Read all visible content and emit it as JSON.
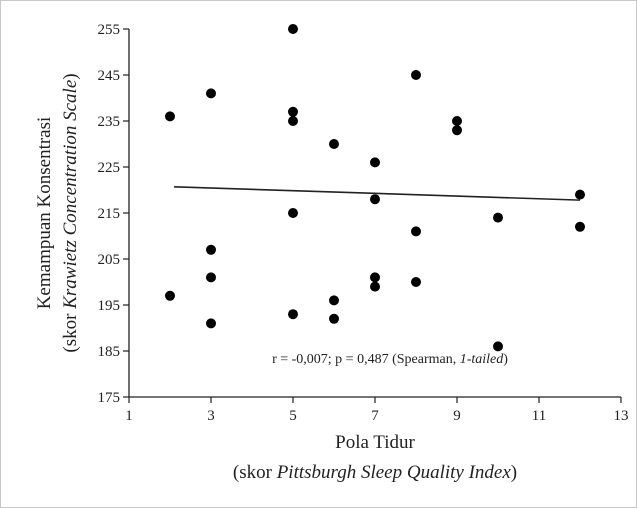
{
  "chart_data": {
    "type": "scatter",
    "xlabel": {
      "line1": "Pola Tidur",
      "line2_prefix": "(skor ",
      "line2_italic": "Pittsburgh Sleep Quality Index",
      "line2_suffix": ")"
    },
    "ylabel": {
      "line1": "Kemampuan Konsentrasi",
      "line2_prefix": "(skor ",
      "line2_italic": "Krawietz Concentration Scale",
      "line2_suffix": ")"
    },
    "xlim": [
      1,
      13
    ],
    "ylim": [
      175,
      255
    ],
    "xticks": [
      1,
      3,
      5,
      7,
      9,
      11,
      13
    ],
    "yticks": [
      175,
      185,
      195,
      205,
      215,
      225,
      235,
      245,
      255
    ],
    "grid": false,
    "points": [
      {
        "x": 2,
        "y": 236
      },
      {
        "x": 2,
        "y": 197
      },
      {
        "x": 3,
        "y": 241
      },
      {
        "x": 3,
        "y": 207
      },
      {
        "x": 3,
        "y": 201
      },
      {
        "x": 3,
        "y": 191
      },
      {
        "x": 5,
        "y": 255
      },
      {
        "x": 5,
        "y": 237
      },
      {
        "x": 5,
        "y": 235
      },
      {
        "x": 5,
        "y": 215
      },
      {
        "x": 5,
        "y": 193
      },
      {
        "x": 6,
        "y": 230
      },
      {
        "x": 6,
        "y": 196
      },
      {
        "x": 6,
        "y": 192
      },
      {
        "x": 7,
        "y": 226
      },
      {
        "x": 7,
        "y": 218
      },
      {
        "x": 7,
        "y": 201
      },
      {
        "x": 7,
        "y": 199
      },
      {
        "x": 8,
        "y": 245
      },
      {
        "x": 8,
        "y": 211
      },
      {
        "x": 8,
        "y": 200
      },
      {
        "x": 9,
        "y": 235
      },
      {
        "x": 9,
        "y": 233
      },
      {
        "x": 10,
        "y": 214
      },
      {
        "x": 10,
        "y": 186
      },
      {
        "x": 12,
        "y": 219
      },
      {
        "x": 12,
        "y": 212
      }
    ],
    "trendline": {
      "x1": 2.1,
      "y1": 220.7,
      "x2": 12,
      "y2": 217.8
    },
    "annotation": {
      "prefix": "r = -0,007; p = 0,487 (Spearman, ",
      "italic": "1-tailed",
      "suffix": ")",
      "x": 7.0,
      "y": 182
    },
    "colors": {
      "marker": "#000000",
      "axis": "#222222",
      "trendline": "#222222"
    }
  }
}
